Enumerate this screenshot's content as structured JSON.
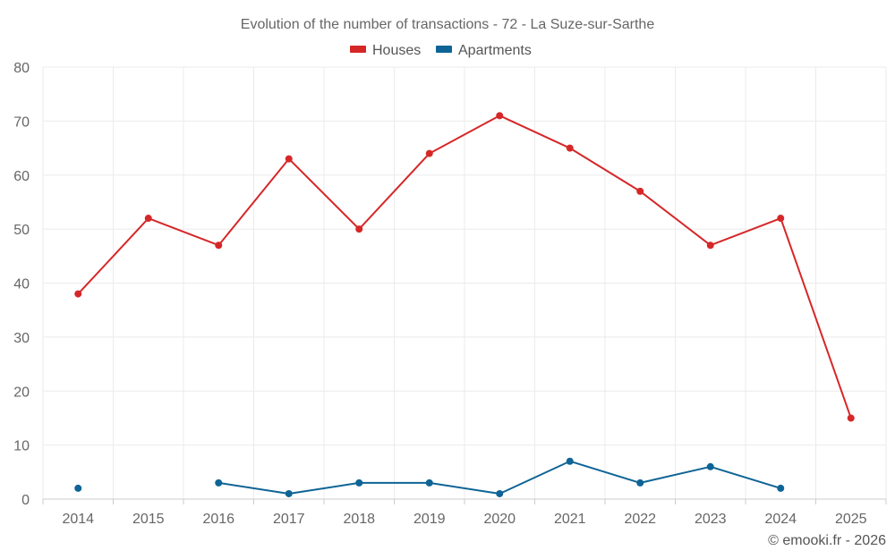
{
  "chart_data": {
    "type": "line",
    "title": "Evolution of the number of transactions - 72 - La Suze-sur-Sarthe",
    "categories": [
      "2014",
      "2015",
      "2016",
      "2017",
      "2018",
      "2019",
      "2020",
      "2021",
      "2022",
      "2023",
      "2024",
      "2025"
    ],
    "ylim": [
      0,
      80
    ],
    "yticks": [
      0,
      10,
      20,
      30,
      40,
      50,
      60,
      70,
      80
    ],
    "grid": true,
    "legend_position": "top-center",
    "series": [
      {
        "name": "Houses",
        "color": "#d62728",
        "values": [
          38,
          52,
          47,
          63,
          50,
          64,
          71,
          65,
          57,
          47,
          52,
          15
        ]
      },
      {
        "name": "Apartments",
        "color": "#0e6496",
        "values": [
          2,
          null,
          3,
          1,
          3,
          3,
          1,
          7,
          3,
          6,
          2,
          null
        ]
      }
    ]
  },
  "credit": "© emooki.fr - 2026"
}
